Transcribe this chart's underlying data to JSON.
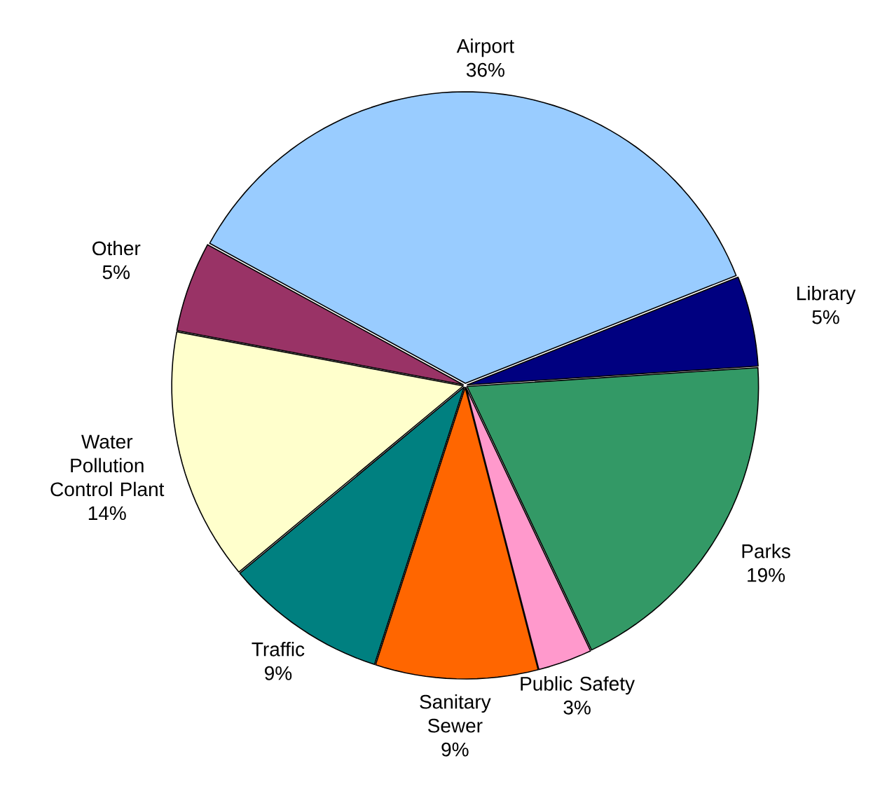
{
  "chart_data": {
    "type": "pie",
    "categories": [
      "Library",
      "Parks",
      "Public Safety",
      "Sanitary Sewer",
      "Traffic",
      "Water Pollution Control Plant",
      "Other",
      "Airport"
    ],
    "values": [
      5,
      19,
      3,
      9,
      9,
      14,
      5,
      36
    ],
    "value_labels": [
      "5%",
      "19%",
      "3%",
      "9%",
      "9%",
      "14%",
      "5%",
      "36%"
    ],
    "colors": [
      "#000080",
      "#339966",
      "#ff99cc",
      "#ff6600",
      "#008080",
      "#ffffcc",
      "#993366",
      "#99ccff"
    ]
  }
}
